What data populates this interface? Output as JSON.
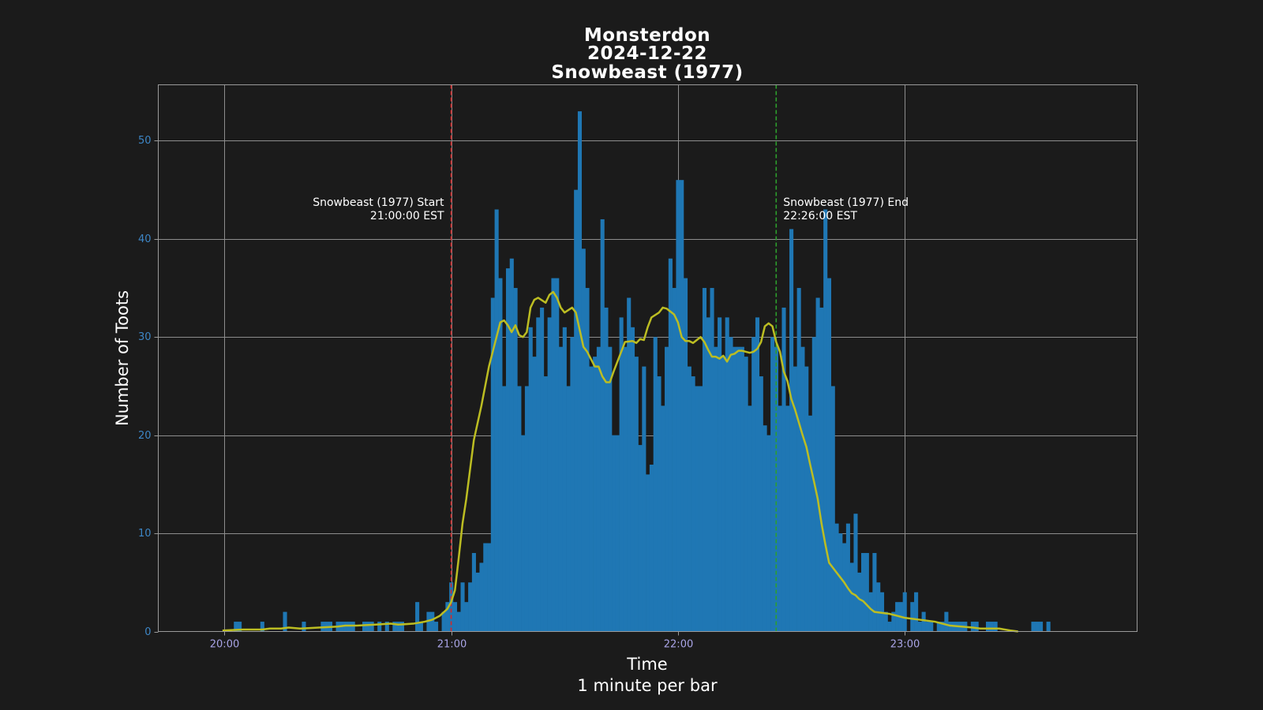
{
  "chart_data": {
    "type": "bar",
    "title_lines": [
      "Monsterdon",
      "2024-12-22",
      "Snowbeast (1977)"
    ],
    "xlabel": "Time",
    "xlabel_sub": "1 minute per bar",
    "ylabel": "Number of Toots",
    "ylim": [
      0,
      55.7
    ],
    "yticks": [
      0,
      10,
      20,
      30,
      40,
      50
    ],
    "xlim_minutes": [
      1182.5,
      1441.5
    ],
    "xticks": [
      {
        "minute": 1200,
        "label": "20:00"
      },
      {
        "minute": 1260,
        "label": "21:00"
      },
      {
        "minute": 1320,
        "label": "22:00"
      },
      {
        "minute": 1380,
        "label": "23:00"
      }
    ],
    "grid": true,
    "bar_width_minutes": 1,
    "x_start_minute": 1200,
    "values": [
      0,
      0,
      0,
      1,
      1,
      0,
      0,
      0,
      0,
      0,
      1,
      0,
      0,
      0,
      0,
      0,
      2,
      0,
      0,
      0,
      0,
      1,
      0,
      0,
      0,
      0,
      1,
      1,
      1,
      0,
      1,
      1,
      1,
      1,
      1,
      0,
      0,
      1,
      1,
      1,
      0,
      1,
      0,
      1,
      0,
      1,
      1,
      1,
      0,
      0,
      0,
      3,
      1,
      0,
      2,
      2,
      1,
      0,
      2,
      3,
      5,
      3,
      2,
      5,
      3,
      5,
      8,
      6,
      7,
      9,
      9,
      34,
      43,
      36,
      25,
      37,
      38,
      35,
      25,
      20,
      25,
      31,
      28,
      32,
      33,
      26,
      32,
      36,
      36,
      29,
      31,
      25,
      30,
      45,
      53,
      39,
      35,
      27,
      28,
      29,
      42,
      33,
      29,
      20,
      20,
      32,
      29,
      34,
      31,
      28,
      19,
      27,
      16,
      17,
      30,
      26,
      23,
      29,
      38,
      35,
      46,
      46,
      36,
      27,
      26,
      25,
      25,
      35,
      32,
      35,
      29,
      32,
      28,
      32,
      30,
      29,
      29,
      29,
      28,
      23,
      30,
      32,
      26,
      21,
      20,
      30,
      29,
      23,
      33,
      23,
      41,
      27,
      35,
      29,
      27,
      22,
      30,
      34,
      33,
      43,
      36,
      25,
      11,
      10,
      9,
      11,
      7,
      12,
      6,
      8,
      8,
      4,
      8,
      5,
      4,
      2,
      1,
      2,
      3,
      3,
      4,
      0,
      3,
      4,
      1,
      2,
      1,
      1,
      0,
      1,
      1,
      2,
      1,
      1,
      1,
      1,
      1,
      0,
      1,
      1,
      0,
      0,
      1,
      1,
      1,
      0,
      0,
      0,
      0,
      0,
      0,
      0,
      0,
      0,
      1,
      1,
      1,
      0,
      1,
      0
    ],
    "trend_line": [
      [
        1199.5,
        0.1
      ],
      [
        1205,
        0.2
      ],
      [
        1210,
        0.2
      ],
      [
        1212,
        0.3
      ],
      [
        1215,
        0.3
      ],
      [
        1217,
        0.4
      ],
      [
        1220,
        0.3
      ],
      [
        1225,
        0.4
      ],
      [
        1230,
        0.5
      ],
      [
        1232,
        0.6
      ],
      [
        1235,
        0.6
      ],
      [
        1240,
        0.7
      ],
      [
        1244,
        0.8
      ],
      [
        1246,
        0.7
      ],
      [
        1250,
        0.8
      ],
      [
        1253,
        1.0
      ],
      [
        1255,
        1.2
      ],
      [
        1257,
        1.6
      ],
      [
        1259,
        2.3
      ],
      [
        1260,
        3.0
      ],
      [
        1261,
        4.2
      ],
      [
        1262,
        7.5
      ],
      [
        1263,
        11.0
      ],
      [
        1264,
        13.5
      ],
      [
        1266,
        19.5
      ],
      [
        1268,
        23.0
      ],
      [
        1270,
        27.0
      ],
      [
        1272,
        30.0
      ],
      [
        1273,
        31.5
      ],
      [
        1274,
        31.7
      ],
      [
        1275,
        31.2
      ],
      [
        1276,
        30.5
      ],
      [
        1277,
        31.2
      ],
      [
        1278,
        30.2
      ],
      [
        1279,
        30.0
      ],
      [
        1280,
        30.5
      ],
      [
        1281,
        33.0
      ],
      [
        1282,
        33.8
      ],
      [
        1283,
        34.0
      ],
      [
        1285,
        33.5
      ],
      [
        1286,
        34.3
      ],
      [
        1287,
        34.6
      ],
      [
        1288,
        34.0
      ],
      [
        1289,
        33.0
      ],
      [
        1290,
        32.5
      ],
      [
        1292,
        33.0
      ],
      [
        1293,
        32.5
      ],
      [
        1295,
        29.0
      ],
      [
        1296,
        28.5
      ],
      [
        1298,
        27.0
      ],
      [
        1299,
        27.0
      ],
      [
        1300,
        26.0
      ],
      [
        1301,
        25.4
      ],
      [
        1302,
        25.4
      ],
      [
        1303,
        26.5
      ],
      [
        1304,
        27.5
      ],
      [
        1305,
        28.5
      ],
      [
        1306,
        29.5
      ],
      [
        1308,
        29.6
      ],
      [
        1309,
        29.4
      ],
      [
        1310,
        29.8
      ],
      [
        1311,
        29.7
      ],
      [
        1312,
        31.0
      ],
      [
        1313,
        32.0
      ],
      [
        1315,
        32.5
      ],
      [
        1316,
        33.0
      ],
      [
        1317,
        32.9
      ],
      [
        1319,
        32.3
      ],
      [
        1320,
        31.5
      ],
      [
        1321,
        30.0
      ],
      [
        1322,
        29.6
      ],
      [
        1323,
        29.6
      ],
      [
        1324,
        29.4
      ],
      [
        1325,
        29.7
      ],
      [
        1326,
        30.0
      ],
      [
        1327,
        29.5
      ],
      [
        1328,
        28.7
      ],
      [
        1329,
        28.0
      ],
      [
        1330,
        28.0
      ],
      [
        1331,
        27.8
      ],
      [
        1332,
        28.1
      ],
      [
        1333,
        27.5
      ],
      [
        1334,
        28.2
      ],
      [
        1335,
        28.3
      ],
      [
        1336,
        28.6
      ],
      [
        1337,
        28.6
      ],
      [
        1338,
        28.5
      ],
      [
        1339,
        28.4
      ],
      [
        1340,
        28.5
      ],
      [
        1341,
        28.8
      ],
      [
        1342,
        29.5
      ],
      [
        1343,
        31.1
      ],
      [
        1344,
        31.4
      ],
      [
        1345,
        31.1
      ],
      [
        1346,
        29.5
      ],
      [
        1347,
        28.5
      ],
      [
        1348,
        26.5
      ],
      [
        1349,
        25.5
      ],
      [
        1350,
        23.7
      ],
      [
        1351,
        22.6
      ],
      [
        1352,
        21.3
      ],
      [
        1353,
        20.0
      ],
      [
        1354,
        18.8
      ],
      [
        1355,
        17.0
      ],
      [
        1356,
        15.3
      ],
      [
        1357,
        13.5
      ],
      [
        1358,
        11.0
      ],
      [
        1359,
        8.9
      ],
      [
        1360,
        7.0
      ],
      [
        1361,
        6.5
      ],
      [
        1362,
        6.0
      ],
      [
        1363,
        5.5
      ],
      [
        1364,
        5.0
      ],
      [
        1365,
        4.4
      ],
      [
        1366,
        3.9
      ],
      [
        1367,
        3.7
      ],
      [
        1368,
        3.3
      ],
      [
        1369,
        3.1
      ],
      [
        1370,
        2.7
      ],
      [
        1371,
        2.3
      ],
      [
        1372,
        2.0
      ],
      [
        1374,
        1.9
      ],
      [
        1376,
        1.8
      ],
      [
        1378,
        1.6
      ],
      [
        1380,
        1.4
      ],
      [
        1382,
        1.3
      ],
      [
        1384,
        1.2
      ],
      [
        1386,
        1.1
      ],
      [
        1388,
        1.0
      ],
      [
        1390,
        0.8
      ],
      [
        1392,
        0.6
      ],
      [
        1395,
        0.5
      ],
      [
        1398,
        0.4
      ],
      [
        1400,
        0.3
      ],
      [
        1405,
        0.3
      ],
      [
        1408,
        0.1
      ],
      [
        1410,
        0.0
      ]
    ],
    "annotations": {
      "start": {
        "minute": 1260,
        "line1": "Snowbeast (1977) Start",
        "line2": "21:00:00 EST",
        "color": "#d62728"
      },
      "end": {
        "minute": 1346,
        "line1": "Snowbeast (1977) End",
        "line2": "22:26:00 EST",
        "color": "#2ca02c"
      }
    },
    "colors": {
      "background": "#1b1b1b",
      "bars": "#1f77b4",
      "trend": "#bcbd22",
      "ytick": "#3d86c6",
      "xtick": "#a9a4e6"
    }
  }
}
